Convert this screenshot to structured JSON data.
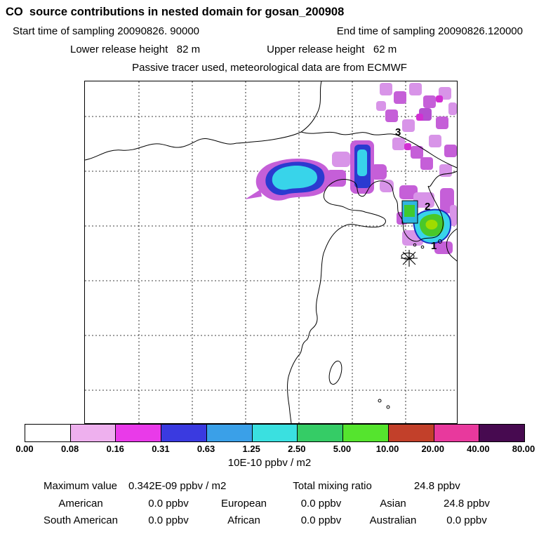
{
  "header": {
    "title": "CO  source contributions in nested domain for gosan_200908",
    "start_time": "Start time of sampling 20090826. 90000",
    "end_time": "End time of sampling 20090826.120000",
    "lower_release": "Lower release height   82 m",
    "upper_release": "Upper release height   62 m",
    "tracer_note": "Passive tracer used, meteorological data are from ECMWF"
  },
  "map": {
    "site_labels": [
      "1",
      "2",
      "3"
    ],
    "marker": "asterisk-receptor-marker"
  },
  "colorbar": {
    "ticks": [
      "0.00",
      "0.08",
      "0.16",
      "0.31",
      "0.63",
      "1.25",
      "2.50",
      "5.00",
      "10.00",
      "20.00",
      "40.00",
      "80.00"
    ],
    "colors": [
      "#ffffff",
      "#eeb0ee",
      "#e93ae9",
      "#3a3ae0",
      "#3aa0e8",
      "#3ae0e0",
      "#35cc66",
      "#55e42e",
      "#c2402a",
      "#e8399d",
      "#470a50"
    ],
    "units": "10E-10 ppbv / m2"
  },
  "stats": {
    "max_label": "Maximum value",
    "max_value": "0.342E-09 ppbv / m2",
    "total_label": "Total mixing ratio",
    "total_value": "24.8 ppbv",
    "rows": [
      {
        "label": "American",
        "value": "0.0 ppbv"
      },
      {
        "label": "European",
        "value": "0.0 ppbv"
      },
      {
        "label": "Asian",
        "value": "24.8 ppbv"
      },
      {
        "label": "South American",
        "value": "0.0 ppbv"
      },
      {
        "label": "African",
        "value": "0.0 ppbv"
      },
      {
        "label": "Australian",
        "value": "0.0 ppbv"
      }
    ]
  },
  "chart_data": {
    "type": "heatmap",
    "title": "CO source contributions in nested domain for gosan_200908",
    "subtitle": [
      "Start time of sampling 20090826. 90000",
      "End time of sampling 20090826.120000",
      "Lower release height 82 m",
      "Upper release height 62 m",
      "Passive tracer used, meteorological data are from ECMWF"
    ],
    "colorbar_levels": [
      0.0,
      0.08,
      0.16,
      0.31,
      0.63,
      1.25,
      2.5,
      5.0,
      10.0,
      20.0,
      40.0,
      80.0
    ],
    "colorbar_units": "10E-10 ppbv / m2",
    "legend_position": "bottom",
    "maximum_value": "0.342E-09 ppbv / m2",
    "total_mixing_ratio_ppbv": 24.8,
    "contributions_ppbv": {
      "American": 0.0,
      "European": 0.0,
      "Asian": 24.8,
      "South American": 0.0,
      "African": 0.0,
      "Australian": 0.0
    },
    "receptor_labels_on_map": [
      "1",
      "2",
      "3"
    ],
    "notes_visible": "high concentration plume over Northeast China, Yellow Sea and Korea; receptor marked with asterisk near Jeju/Gosan"
  }
}
